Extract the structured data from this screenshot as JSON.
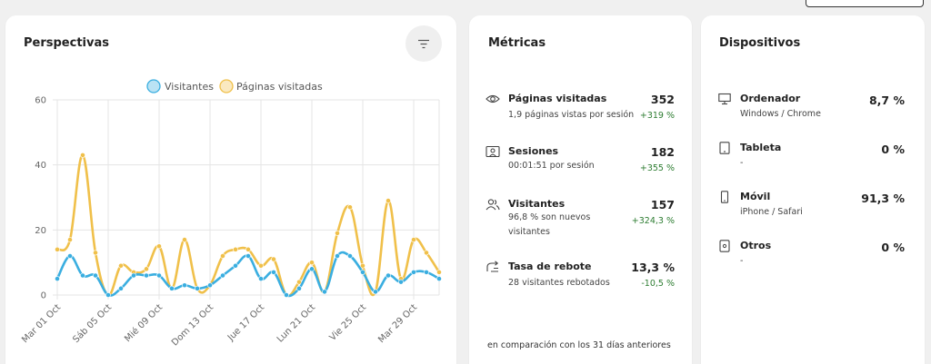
{
  "perspectives": {
    "title": "Perspectivas",
    "filter_icon": "filter-icon"
  },
  "chart_data": {
    "type": "line",
    "legend_position": "top",
    "grid": true,
    "ylim": [
      0,
      60
    ],
    "yticks": [
      "0",
      "20",
      "40",
      "60"
    ],
    "x_tick_labels": [
      "Mar 01 Oct",
      "Sáb 05 Oct",
      "Mié 09 Oct",
      "Dom 13 Oct",
      "Jue 17 Oct",
      "Lun 21 Oct",
      "Vie 25 Oct",
      "Mar 29 Oct"
    ],
    "series": [
      {
        "name": "Visitantes",
        "color": "#3aaee0",
        "values": [
          5,
          12,
          6,
          6,
          0,
          2,
          6,
          6,
          6,
          2,
          3,
          2,
          3,
          6,
          9,
          12,
          5,
          7,
          0,
          2,
          8,
          1,
          12,
          12,
          7,
          1,
          6,
          4,
          7,
          7,
          5
        ]
      },
      {
        "name": "Páginas visitadas",
        "color": "#f0c04a",
        "values": [
          14,
          17,
          43,
          13,
          0,
          9,
          7,
          8,
          15,
          2,
          17,
          2,
          3,
          12,
          14,
          14,
          9,
          11,
          0,
          4,
          10,
          1,
          19,
          27,
          9,
          1,
          29,
          5,
          17,
          13,
          7
        ]
      }
    ]
  },
  "metrics": {
    "title": "Métricas",
    "items": [
      {
        "icon": "eye-icon",
        "label": "Páginas visitadas",
        "sub": "1,9 páginas vistas por sesión",
        "value": "352",
        "change": "+319 %",
        "change_color": "#2e7d32"
      },
      {
        "icon": "sessions-icon",
        "label": "Sesiones",
        "sub": "00:01:51 por sesión",
        "value": "182",
        "change": "+355 %",
        "change_color": "#2e7d32"
      },
      {
        "icon": "users-icon",
        "label": "Visitantes",
        "sub": "96,8 % son nuevos visitantes",
        "value": "157",
        "change": "+324,3 %",
        "change_color": "#2e7d32"
      },
      {
        "icon": "bounce-icon",
        "label": "Tasa de rebote",
        "sub": "28 visitantes rebotados",
        "value": "13,3 %",
        "change": "-10,5 %",
        "change_color": "#2e7d32"
      }
    ],
    "footer": "en comparación con los 31 días anteriores"
  },
  "devices": {
    "title": "Dispositivos",
    "items": [
      {
        "icon": "desktop-icon",
        "label": "Ordenador",
        "sub": "Windows / Chrome",
        "value": "8,7 %"
      },
      {
        "icon": "tablet-icon",
        "label": "Tableta",
        "sub": "-",
        "value": "0 %"
      },
      {
        "icon": "mobile-icon",
        "label": "Móvil",
        "sub": "iPhone / Safari",
        "value": "91,3 %"
      },
      {
        "icon": "other-device-icon",
        "label": "Otros",
        "sub": "-",
        "value": "0 %"
      }
    ]
  }
}
